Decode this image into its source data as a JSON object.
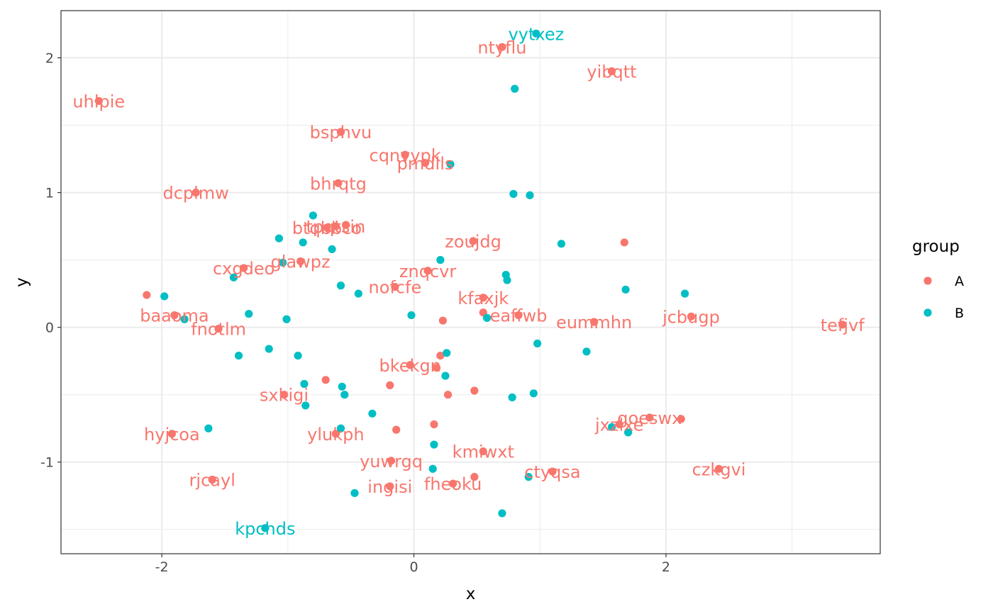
{
  "chart_data": {
    "type": "scatter",
    "title": "",
    "xlabel": "x",
    "ylabel": "y",
    "xlim": [
      -2.8,
      3.7
    ],
    "ylim": [
      -1.68,
      2.35
    ],
    "x_ticks": [
      -2,
      0,
      2
    ],
    "x_tick_labels": [
      "-2",
      "0",
      "2"
    ],
    "y_ticks": [
      -1,
      0,
      1,
      2
    ],
    "y_tick_labels": [
      "-1",
      "0",
      "1",
      "2"
    ],
    "grid": true,
    "legend": {
      "title": "group",
      "position": "right",
      "entries": [
        {
          "name": "A",
          "color": "#F8766D"
        },
        {
          "name": "B",
          "color": "#00BFC4"
        }
      ]
    },
    "series": [
      {
        "name": "A",
        "color": "#F8766D",
        "points": [
          {
            "x": 0.7,
            "y": 2.08,
            "label": "ntyflu"
          },
          {
            "x": 1.57,
            "y": 1.9,
            "label": "yibqtt"
          },
          {
            "x": -2.5,
            "y": 1.68,
            "label": "uhlpie"
          },
          {
            "x": -0.58,
            "y": 1.45,
            "label": "bsphvu"
          },
          {
            "x": -0.07,
            "y": 1.28,
            "label": "cqnvypk"
          },
          {
            "x": 0.09,
            "y": 1.22,
            "label": "pmdlls"
          },
          {
            "x": -0.6,
            "y": 1.07,
            "label": "bhrqtg"
          },
          {
            "x": -1.73,
            "y": 1.0,
            "label": "dcplmw"
          },
          {
            "x": -0.62,
            "y": 0.75,
            "label": "tpqtsin"
          },
          {
            "x": -0.69,
            "y": 0.74,
            "label": "btqbbco"
          },
          {
            "x": -0.54,
            "y": 0.76,
            "label": ""
          },
          {
            "x": 0.47,
            "y": 0.64,
            "label": "zoujdg"
          },
          {
            "x": 1.67,
            "y": 0.63,
            "label": ""
          },
          {
            "x": -0.9,
            "y": 0.49,
            "label": "glawpz"
          },
          {
            "x": -1.35,
            "y": 0.44,
            "label": "cxgdeo"
          },
          {
            "x": 0.11,
            "y": 0.42,
            "label": "znqcvr"
          },
          {
            "x": -0.15,
            "y": 0.3,
            "label": "nofcfe"
          },
          {
            "x": -2.12,
            "y": 0.24,
            "label": ""
          },
          {
            "x": 0.55,
            "y": 0.22,
            "label": "kfaxjk"
          },
          {
            "x": 0.55,
            "y": 0.11,
            "label": ""
          },
          {
            "x": 0.83,
            "y": 0.09,
            "label": "eaffwb"
          },
          {
            "x": 1.43,
            "y": 0.04,
            "label": "eummhn"
          },
          {
            "x": 2.2,
            "y": 0.08,
            "label": "jcbugp"
          },
          {
            "x": 3.4,
            "y": 0.02,
            "label": "tefjvf"
          },
          {
            "x": -1.9,
            "y": 0.09,
            "label": "baaoma"
          },
          {
            "x": -1.55,
            "y": -0.01,
            "label": "fnotlm"
          },
          {
            "x": 0.23,
            "y": 0.05,
            "label": ""
          },
          {
            "x": -0.03,
            "y": -0.28,
            "label": "bkekgn"
          },
          {
            "x": 0.21,
            "y": -0.21,
            "label": ""
          },
          {
            "x": 0.18,
            "y": -0.3,
            "label": ""
          },
          {
            "x": -0.7,
            "y": -0.39,
            "label": ""
          },
          {
            "x": -0.19,
            "y": -0.43,
            "label": ""
          },
          {
            "x": 0.48,
            "y": -0.47,
            "label": ""
          },
          {
            "x": 0.27,
            "y": -0.5,
            "label": ""
          },
          {
            "x": -1.03,
            "y": -0.5,
            "label": "sxkigi"
          },
          {
            "x": -1.92,
            "y": -0.79,
            "label": "hyjcoa"
          },
          {
            "x": -0.62,
            "y": -0.79,
            "label": "ylukph"
          },
          {
            "x": -0.14,
            "y": -0.76,
            "label": ""
          },
          {
            "x": 0.16,
            "y": -0.72,
            "label": ""
          },
          {
            "x": 1.87,
            "y": -0.67,
            "label": "goeswx"
          },
          {
            "x": 2.12,
            "y": -0.68,
            "label": ""
          },
          {
            "x": 1.63,
            "y": -0.72,
            "label": "jxzlxe"
          },
          {
            "x": 0.55,
            "y": -0.92,
            "label": "kmiwxt"
          },
          {
            "x": -0.18,
            "y": -0.99,
            "label": "yuwrgq"
          },
          {
            "x": 1.1,
            "y": -1.07,
            "label": "ctyqsa"
          },
          {
            "x": 0.48,
            "y": -1.11,
            "label": ""
          },
          {
            "x": 2.42,
            "y": -1.05,
            "label": "czkgvi"
          },
          {
            "x": -1.6,
            "y": -1.13,
            "label": "rjcayl"
          },
          {
            "x": -0.19,
            "y": -1.18,
            "label": "ingisi"
          },
          {
            "x": 0.31,
            "y": -1.16,
            "label": "fheoku"
          }
        ]
      },
      {
        "name": "B",
        "color": "#00BFC4",
        "points": [
          {
            "x": 0.97,
            "y": 2.18,
            "label": "vytxez"
          },
          {
            "x": 0.8,
            "y": 1.77,
            "label": ""
          },
          {
            "x": 0.29,
            "y": 1.21,
            "label": ""
          },
          {
            "x": 0.79,
            "y": 0.99,
            "label": ""
          },
          {
            "x": 0.92,
            "y": 0.98,
            "label": ""
          },
          {
            "x": -0.8,
            "y": 0.83,
            "label": ""
          },
          {
            "x": -1.07,
            "y": 0.66,
            "label": ""
          },
          {
            "x": -0.88,
            "y": 0.63,
            "label": ""
          },
          {
            "x": -0.65,
            "y": 0.58,
            "label": ""
          },
          {
            "x": 1.17,
            "y": 0.62,
            "label": ""
          },
          {
            "x": -1.04,
            "y": 0.48,
            "label": ""
          },
          {
            "x": 0.21,
            "y": 0.5,
            "label": ""
          },
          {
            "x": 0.73,
            "y": 0.39,
            "label": ""
          },
          {
            "x": 0.74,
            "y": 0.35,
            "label": ""
          },
          {
            "x": -1.43,
            "y": 0.37,
            "label": ""
          },
          {
            "x": -0.58,
            "y": 0.31,
            "label": ""
          },
          {
            "x": -0.44,
            "y": 0.25,
            "label": ""
          },
          {
            "x": 1.68,
            "y": 0.28,
            "label": ""
          },
          {
            "x": 2.15,
            "y": 0.25,
            "label": ""
          },
          {
            "x": -1.98,
            "y": 0.23,
            "label": ""
          },
          {
            "x": -1.31,
            "y": 0.1,
            "label": ""
          },
          {
            "x": -0.02,
            "y": 0.09,
            "label": ""
          },
          {
            "x": -1.82,
            "y": 0.06,
            "label": ""
          },
          {
            "x": -1.01,
            "y": 0.06,
            "label": ""
          },
          {
            "x": 0.58,
            "y": 0.07,
            "label": ""
          },
          {
            "x": 0.98,
            "y": -0.12,
            "label": ""
          },
          {
            "x": 1.37,
            "y": -0.18,
            "label": ""
          },
          {
            "x": -1.15,
            "y": -0.16,
            "label": ""
          },
          {
            "x": -1.39,
            "y": -0.21,
            "label": ""
          },
          {
            "x": -0.92,
            "y": -0.21,
            "label": ""
          },
          {
            "x": 0.26,
            "y": -0.19,
            "label": ""
          },
          {
            "x": 0.25,
            "y": -0.36,
            "label": ""
          },
          {
            "x": -0.87,
            "y": -0.42,
            "label": ""
          },
          {
            "x": -0.57,
            "y": -0.44,
            "label": ""
          },
          {
            "x": -0.55,
            "y": -0.5,
            "label": ""
          },
          {
            "x": -0.86,
            "y": -0.58,
            "label": ""
          },
          {
            "x": 0.95,
            "y": -0.49,
            "label": ""
          },
          {
            "x": 0.78,
            "y": -0.52,
            "label": ""
          },
          {
            "x": -0.33,
            "y": -0.64,
            "label": ""
          },
          {
            "x": -1.63,
            "y": -0.75,
            "label": ""
          },
          {
            "x": -0.58,
            "y": -0.75,
            "label": ""
          },
          {
            "x": 1.57,
            "y": -0.74,
            "label": ""
          },
          {
            "x": 1.7,
            "y": -0.78,
            "label": ""
          },
          {
            "x": 0.16,
            "y": -0.87,
            "label": ""
          },
          {
            "x": 0.15,
            "y": -1.05,
            "label": ""
          },
          {
            "x": 0.91,
            "y": -1.11,
            "label": ""
          },
          {
            "x": -0.47,
            "y": -1.23,
            "label": ""
          },
          {
            "x": 0.7,
            "y": -1.38,
            "label": ""
          },
          {
            "x": -1.18,
            "y": -1.49,
            "label": "kpchds"
          }
        ]
      }
    ]
  }
}
